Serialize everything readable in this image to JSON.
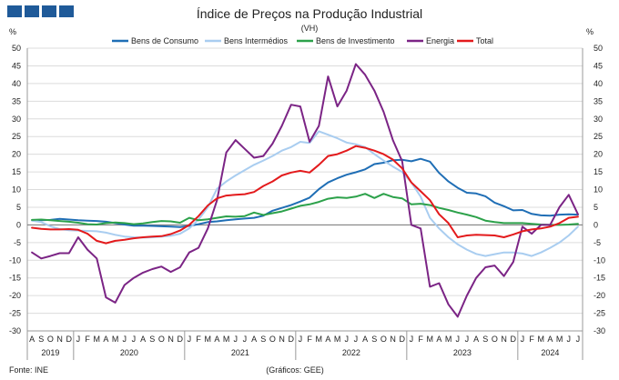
{
  "chart_data": {
    "type": "line",
    "title": "Índice de Preços na Produção Industrial",
    "subtitle": "(VH)",
    "ylabel_left": "%",
    "ylabel_right": "%",
    "ylim": [
      -30,
      50
    ],
    "yticks": [
      -30,
      -25,
      -20,
      -15,
      -10,
      -5,
      0,
      5,
      10,
      15,
      20,
      25,
      30,
      35,
      40,
      45,
      50
    ],
    "x": [
      "A",
      "S",
      "O",
      "N",
      "D",
      "J",
      "F",
      "M",
      "A",
      "M",
      "J",
      "J",
      "A",
      "S",
      "O",
      "N",
      "D",
      "J",
      "F",
      "M",
      "A",
      "M",
      "J",
      "J",
      "A",
      "S",
      "O",
      "N",
      "D",
      "J",
      "F",
      "M",
      "A",
      "M",
      "J",
      "J",
      "A",
      "S",
      "O",
      "N",
      "D",
      "J",
      "F",
      "M",
      "A",
      "M",
      "J",
      "J",
      "A",
      "S",
      "O",
      "N",
      "D",
      "J",
      "F",
      "M",
      "A",
      "M",
      "J",
      "J"
    ],
    "years": [
      {
        "label": "2019",
        "start": 0,
        "end": 4
      },
      {
        "label": "2020",
        "start": 5,
        "end": 16
      },
      {
        "label": "2021",
        "start": 17,
        "end": 28
      },
      {
        "label": "2022",
        "start": 29,
        "end": 40
      },
      {
        "label": "2023",
        "start": 41,
        "end": 52
      },
      {
        "label": "2024",
        "start": 53,
        "end": 59
      }
    ],
    "series": [
      {
        "name": "Bens de Consumo",
        "color": "#1f6eb5",
        "values": [
          1.3,
          1.3,
          1.4,
          1.7,
          1.5,
          1.3,
          1.2,
          1.1,
          0.9,
          0.5,
          0.1,
          -0.2,
          -0.2,
          -0.3,
          -0.4,
          -0.5,
          -0.6,
          -0.3,
          0.2,
          0.8,
          1.0,
          1.3,
          1.6,
          1.8,
          2.0,
          2.6,
          4.0,
          4.8,
          5.6,
          6.6,
          7.7,
          10.1,
          12.0,
          13.2,
          14.2,
          14.9,
          15.7,
          17.2,
          17.6,
          18.3,
          18.4,
          18.0,
          18.7,
          17.9,
          14.7,
          12.3,
          10.5,
          9.1,
          8.9,
          8.1,
          6.3,
          5.3,
          4.1,
          4.2,
          3.1,
          2.7,
          2.6,
          2.9,
          3.0,
          2.9
        ]
      },
      {
        "name": "Bens Intermédios",
        "color": "#a9cdf0",
        "values": [
          1.2,
          0.8,
          -0.4,
          -1.2,
          -1.5,
          -1.6,
          -1.7,
          -1.8,
          -2.2,
          -2.8,
          -3.3,
          -3.5,
          -3.6,
          -3.5,
          -3.3,
          -3.1,
          -2.5,
          -1.0,
          1.5,
          5.0,
          10.2,
          12.3,
          14.0,
          15.5,
          17.0,
          18.2,
          19.5,
          21.0,
          22.0,
          23.5,
          23.2,
          26.5,
          25.5,
          24.5,
          23.3,
          22.8,
          22.0,
          20.0,
          18.2,
          16.5,
          15.0,
          12.0,
          8.0,
          2.0,
          -1.0,
          -3.5,
          -5.5,
          -7.0,
          -8.2,
          -8.8,
          -8.3,
          -7.8,
          -7.8,
          -8.1,
          -8.8,
          -7.8,
          -6.5,
          -5.0,
          -3.0,
          -0.5
        ]
      },
      {
        "name": "Bens de Investimento",
        "color": "#2ca14a",
        "values": [
          1.4,
          1.5,
          1.3,
          1.1,
          0.9,
          0.6,
          0.2,
          0.1,
          0.5,
          0.7,
          0.5,
          0.2,
          0.4,
          0.8,
          1.1,
          1.0,
          0.6,
          2.0,
          1.3,
          1.6,
          2.0,
          2.4,
          2.3,
          2.5,
          3.5,
          2.8,
          3.3,
          3.8,
          4.6,
          5.4,
          5.8,
          6.5,
          7.4,
          7.8,
          7.6,
          8.0,
          8.8,
          7.6,
          8.8,
          7.9,
          7.5,
          5.8,
          6.0,
          5.6,
          4.8,
          4.2,
          3.5,
          2.9,
          2.2,
          1.2,
          0.8,
          0.5,
          0.5,
          0.5,
          0.3,
          0.1,
          0.0,
          0.0,
          0.1,
          0.3
        ]
      },
      {
        "name": "Energia",
        "color": "#7b2485",
        "values": [
          -7.8,
          -9.5,
          -8.8,
          -8.0,
          -8.0,
          -3.5,
          -7.0,
          -9.5,
          -20.5,
          -22.0,
          -17.0,
          -15.0,
          -13.5,
          -12.5,
          -11.8,
          -13.3,
          -12.0,
          -7.8,
          -6.5,
          -1.0,
          7.0,
          20.5,
          24.0,
          21.5,
          19.0,
          19.5,
          23.0,
          28.0,
          34.0,
          33.5,
          23.5,
          28.0,
          42.0,
          33.5,
          38.0,
          45.5,
          42.5,
          38.0,
          32.0,
          24.0,
          18.0,
          0.0,
          -1.0,
          -17.5,
          -16.5,
          -22.5,
          -26.0,
          -20.0,
          -15.0,
          -12.0,
          -11.5,
          -14.5,
          -10.5,
          -0.5,
          -2.5,
          0.0,
          0.0,
          5.0,
          8.5,
          3.0
        ]
      },
      {
        "name": "Total",
        "color": "#e31a1c",
        "values": [
          -0.8,
          -1.1,
          -1.3,
          -1.3,
          -1.2,
          -1.4,
          -2.5,
          -4.5,
          -5.2,
          -4.5,
          -4.2,
          -3.8,
          -3.5,
          -3.3,
          -3.2,
          -2.6,
          -1.6,
          0.0,
          2.5,
          5.5,
          7.5,
          8.3,
          8.5,
          8.7,
          9.3,
          11.0,
          12.3,
          14.0,
          14.8,
          15.3,
          14.8,
          17.0,
          19.5,
          20.0,
          21.0,
          22.3,
          21.8,
          21.0,
          20.0,
          18.5,
          16.0,
          12.0,
          9.5,
          7.0,
          3.0,
          0.5,
          -3.5,
          -3.0,
          -2.8,
          -2.9,
          -3.0,
          -3.5,
          -2.7,
          -1.8,
          -1.3,
          -1.0,
          -0.5,
          0.5,
          2.0,
          2.3
        ]
      }
    ]
  },
  "source": "Fonte: INE",
  "credit": "(Gráficos: GEE)"
}
